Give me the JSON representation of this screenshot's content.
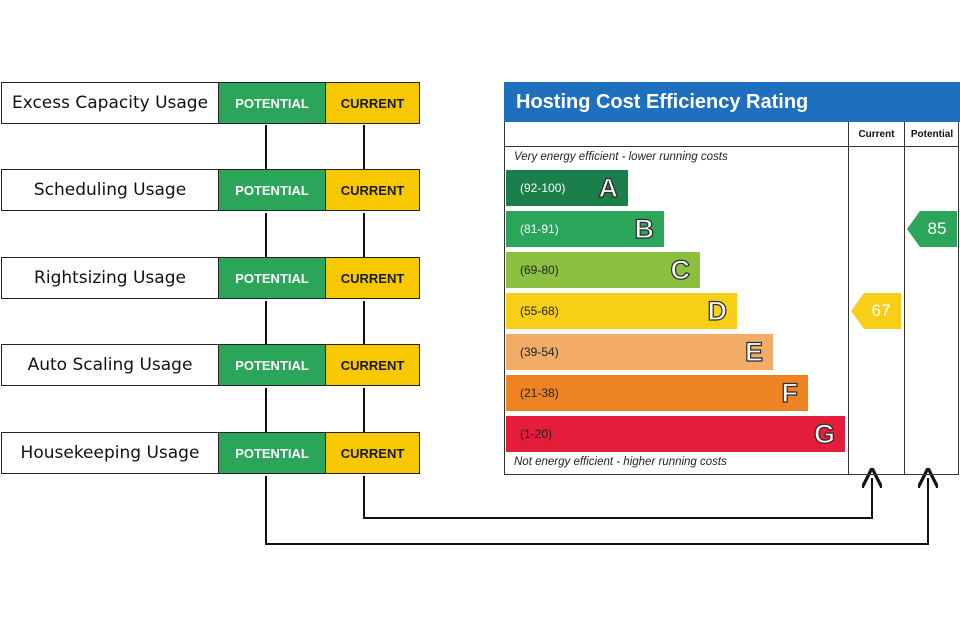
{
  "usage_rows": [
    {
      "label": "Excess Capacity Usage",
      "potential": "POTENTIAL",
      "current": "CURRENT"
    },
    {
      "label": "Scheduling Usage",
      "potential": "POTENTIAL",
      "current": "CURRENT"
    },
    {
      "label": "Rightsizing Usage",
      "potential": "POTENTIAL",
      "current": "CURRENT"
    },
    {
      "label": "Auto Scaling Usage",
      "potential": "POTENTIAL",
      "current": "CURRENT"
    },
    {
      "label": "Housekeeping Usage",
      "potential": "POTENTIAL",
      "current": "CURRENT"
    }
  ],
  "rating": {
    "title": "Hosting Cost Efficiency Rating",
    "column_current": "Current",
    "column_potential": "Potential",
    "top_caption": "Very energy efficient - lower running costs",
    "bottom_caption": "Not energy efficient - higher running costs",
    "bands": [
      {
        "range": "(92-100)",
        "letter": "A",
        "color": "#1a7f4b",
        "range_color": "#ffffff"
      },
      {
        "range": "(81-91)",
        "letter": "B",
        "color": "#2aa55a",
        "range_color": "#ffffff"
      },
      {
        "range": "(69-80)",
        "letter": "C",
        "color": "#8cbf3f",
        "range_color": "#222222"
      },
      {
        "range": "(55-68)",
        "letter": "D",
        "color": "#f7cf17",
        "range_color": "#222222"
      },
      {
        "range": "(39-54)",
        "letter": "E",
        "color": "#f2ac68",
        "range_color": "#222222"
      },
      {
        "range": "(21-38)",
        "letter": "F",
        "color": "#ee8323",
        "range_color": "#222222"
      },
      {
        "range": "(1-20)",
        "letter": "G",
        "color": "#e31d3a",
        "range_color": "#222222"
      }
    ],
    "current_value": "67",
    "current_band": "D",
    "potential_value": "85",
    "potential_band": "B"
  },
  "colors": {
    "title_bar": "#1f6fbf",
    "potential": "#2aa55a",
    "current": "#f7c800",
    "connector": "#111111"
  }
}
